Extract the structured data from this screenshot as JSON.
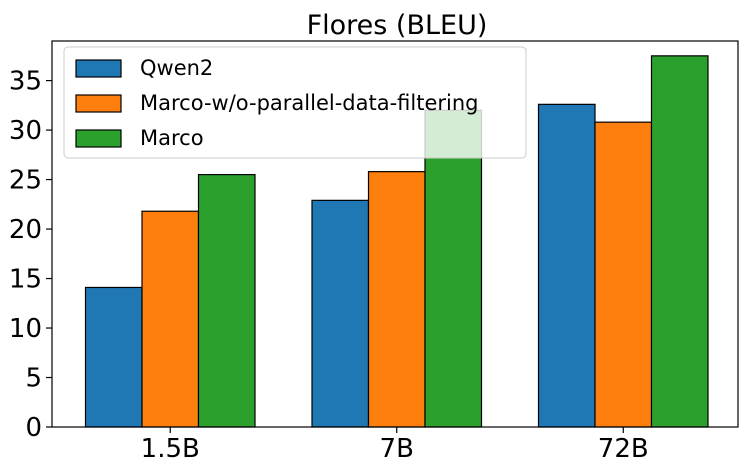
{
  "chart_data": {
    "type": "bar",
    "title": "Flores (BLEU)",
    "xlabel": "",
    "ylabel": "",
    "categories": [
      "1.5B",
      "7B",
      "72B"
    ],
    "series": [
      {
        "name": "Qwen2",
        "color": "#1f77b4",
        "values": [
          14.1,
          22.9,
          32.6
        ]
      },
      {
        "name": "Marco-w/o-parallel-data-filtering",
        "color": "#ff7f0e",
        "values": [
          21.8,
          25.8,
          30.8
        ]
      },
      {
        "name": "Marco",
        "color": "#2ca02c",
        "values": [
          25.5,
          32.0,
          37.5
        ]
      }
    ],
    "ylim": [
      0,
      39
    ],
    "yticks": [
      "0",
      "5",
      "10",
      "15",
      "20",
      "25",
      "30",
      "35"
    ],
    "grid": false,
    "legend_position": "top-left"
  }
}
